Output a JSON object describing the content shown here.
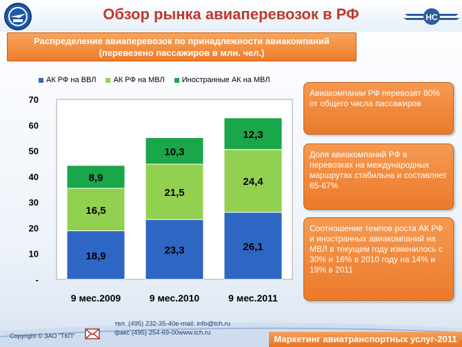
{
  "header": {
    "title": "Обзор рынка авиаперевозок в РФ",
    "subtitle_line1": "Распределение авиаперевозок по принадлежности авиакомпаний",
    "subtitle_line2": "(перевезено пассажиров в млн. чел.)",
    "right_logo_text": "НС"
  },
  "colors": {
    "title": "#c0392b",
    "series_1": "#2e66c4",
    "series_2": "#92d050",
    "series_3": "#1aa64a",
    "orange": "#ee7d2c"
  },
  "chart_data": {
    "type": "bar",
    "stacked": true,
    "categories": [
      "9 мес.2009",
      "9 мес.2010",
      "9 мес.2011"
    ],
    "series": [
      {
        "name": "АК РФ на ВВЛ",
        "values": [
          18.9,
          23.3,
          26.1
        ],
        "labels": [
          "18,9",
          "23,3",
          "26,1"
        ]
      },
      {
        "name": "АК РФ на МВЛ",
        "values": [
          16.5,
          21.5,
          24.4
        ],
        "labels": [
          "16,5",
          "21,5",
          "24,4"
        ]
      },
      {
        "name": "Иностранные АК на МВЛ",
        "values": [
          8.9,
          10.3,
          12.3
        ],
        "labels": [
          "8,9",
          "10,3",
          "12,3"
        ]
      }
    ],
    "ylim": [
      0,
      70
    ],
    "yticks": [
      "-",
      "10",
      "20",
      "30",
      "40",
      "50",
      "60",
      "70"
    ],
    "grid": false,
    "legend": "top"
  },
  "callouts": [
    "Авиакомпании РФ перевозят 80% от общего числа пассажиров",
    "Доля авиакомпаний РФ в перевозках на международных маршрутах стабильна и составляет 65-67%",
    "Соотношение темпов роста АК РФ и иностранных авиакомпаний на МВЛ в текущем году изменилось с 30% и 16% в 2010  году на 14% и 19%  в 2011"
  ],
  "footer": {
    "copyright": "Copyright © ЗАО \"ТКП\"",
    "phone": "тел.  (495) 232-35-40",
    "email": "e-mail: info@tch.ru",
    "fax": "факс (495) 254-69-00",
    "website": "www.tch.ru",
    "banner": "Маркетинг авиатранспортных услуг-2011"
  }
}
